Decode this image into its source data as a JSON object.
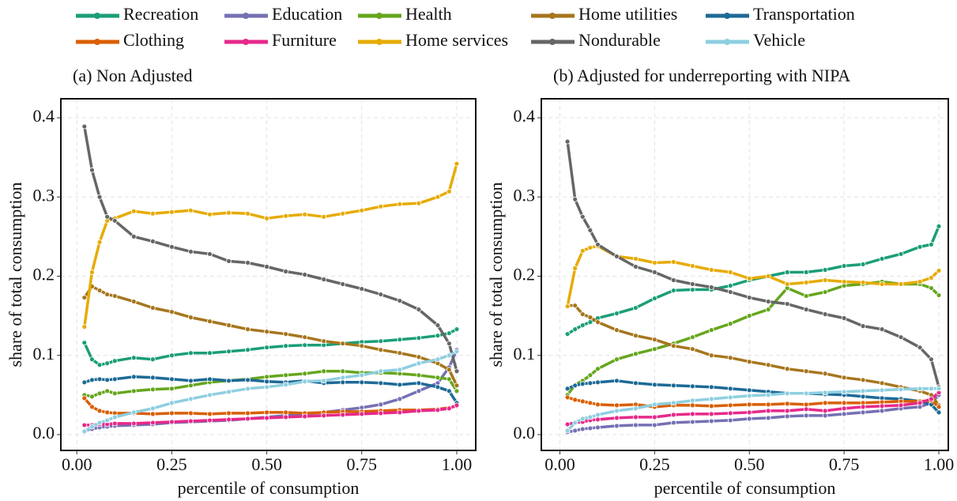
{
  "chart_data": [
    {
      "type": "line",
      "title": "(a) Non Adjusted",
      "x_label": "percentile of consumption",
      "y_label": "share of total consumption",
      "grid": true,
      "legend": "top",
      "x": [
        0.02,
        0.04,
        0.06,
        0.08,
        0.1,
        0.15,
        0.2,
        0.25,
        0.3,
        0.35,
        0.4,
        0.45,
        0.5,
        0.55,
        0.6,
        0.65,
        0.7,
        0.75,
        0.8,
        0.85,
        0.9,
        0.95,
        0.98,
        1.0
      ],
      "xlim": [
        -0.042,
        1.05
      ],
      "xticks": [
        {
          "value": 0,
          "label": "0.00"
        },
        {
          "value": 0.25,
          "label": "0.25"
        },
        {
          "value": 0.5,
          "label": "0.50"
        },
        {
          "value": 0.75,
          "label": "0.75"
        },
        {
          "value": 1,
          "label": "1.00"
        }
      ],
      "ylim": [
        -0.02,
        0.424
      ],
      "yticks": [
        {
          "value": 0,
          "label": "0.0"
        },
        {
          "value": 0.1,
          "label": "0.1"
        },
        {
          "value": 0.2,
          "label": "0.2"
        },
        {
          "value": 0.3,
          "label": "0.3"
        },
        {
          "value": 0.4,
          "label": "0.4"
        }
      ],
      "series": [
        {
          "name": "Recreation",
          "color": "#1b9e77",
          "values": [
            0.116,
            0.095,
            0.088,
            0.09,
            0.093,
            0.097,
            0.095,
            0.1,
            0.103,
            0.103,
            0.105,
            0.107,
            0.11,
            0.112,
            0.113,
            0.113,
            0.115,
            0.117,
            0.118,
            0.12,
            0.122,
            0.125,
            0.128,
            0.133
          ]
        },
        {
          "name": "Education",
          "color": "#7570b3",
          "values": [
            0.005,
            0.007,
            0.009,
            0.01,
            0.011,
            0.012,
            0.013,
            0.015,
            0.016,
            0.017,
            0.018,
            0.02,
            0.022,
            0.024,
            0.026,
            0.028,
            0.031,
            0.034,
            0.038,
            0.045,
            0.055,
            0.065,
            0.085,
            0.107
          ]
        },
        {
          "name": "Health",
          "color": "#66a61e",
          "values": [
            0.05,
            0.048,
            0.052,
            0.055,
            0.052,
            0.055,
            0.057,
            0.058,
            0.062,
            0.066,
            0.068,
            0.07,
            0.073,
            0.075,
            0.077,
            0.08,
            0.08,
            0.078,
            0.078,
            0.077,
            0.075,
            0.072,
            0.07,
            0.055
          ]
        },
        {
          "name": "Home utilities",
          "color": "#a6761d",
          "values": [
            0.173,
            0.187,
            0.182,
            0.177,
            0.175,
            0.168,
            0.16,
            0.155,
            0.148,
            0.143,
            0.138,
            0.133,
            0.13,
            0.127,
            0.123,
            0.118,
            0.115,
            0.112,
            0.107,
            0.103,
            0.098,
            0.09,
            0.082,
            0.062
          ]
        },
        {
          "name": "Transportation",
          "color": "#1d6a96",
          "values": [
            0.066,
            0.069,
            0.07,
            0.069,
            0.07,
            0.073,
            0.072,
            0.07,
            0.068,
            0.07,
            0.068,
            0.069,
            0.067,
            0.066,
            0.068,
            0.065,
            0.066,
            0.066,
            0.065,
            0.063,
            0.065,
            0.06,
            0.055,
            0.04
          ]
        },
        {
          "name": "Clothing",
          "color": "#d95f02",
          "values": [
            0.046,
            0.035,
            0.03,
            0.028,
            0.027,
            0.027,
            0.026,
            0.027,
            0.027,
            0.026,
            0.027,
            0.027,
            0.028,
            0.028,
            0.027,
            0.028,
            0.029,
            0.029,
            0.03,
            0.031,
            0.031,
            0.032,
            0.034,
            0.036
          ]
        },
        {
          "name": "Furniture",
          "color": "#e7298a",
          "values": [
            0.012,
            0.012,
            0.013,
            0.013,
            0.014,
            0.014,
            0.015,
            0.016,
            0.017,
            0.018,
            0.019,
            0.02,
            0.021,
            0.022,
            0.023,
            0.024,
            0.025,
            0.026,
            0.027,
            0.028,
            0.03,
            0.031,
            0.033,
            0.037
          ]
        },
        {
          "name": "Home services",
          "color": "#e6ab02",
          "values": [
            0.136,
            0.205,
            0.243,
            0.27,
            0.273,
            0.282,
            0.279,
            0.281,
            0.283,
            0.278,
            0.28,
            0.279,
            0.273,
            0.276,
            0.278,
            0.275,
            0.279,
            0.283,
            0.288,
            0.291,
            0.292,
            0.3,
            0.307,
            0.342
          ]
        },
        {
          "name": "Nondurable",
          "color": "#666666",
          "values": [
            0.389,
            0.334,
            0.3,
            0.275,
            0.27,
            0.25,
            0.244,
            0.237,
            0.231,
            0.228,
            0.219,
            0.217,
            0.212,
            0.206,
            0.202,
            0.196,
            0.19,
            0.184,
            0.177,
            0.169,
            0.158,
            0.138,
            0.115,
            0.08
          ]
        },
        {
          "name": "Vehicle",
          "color": "#8ecfe0",
          "values": [
            0.004,
            0.01,
            0.015,
            0.018,
            0.022,
            0.028,
            0.033,
            0.04,
            0.045,
            0.05,
            0.054,
            0.058,
            0.06,
            0.063,
            0.067,
            0.068,
            0.072,
            0.075,
            0.08,
            0.082,
            0.09,
            0.095,
            0.1,
            0.105
          ]
        }
      ]
    },
    {
      "type": "line",
      "title": "(b) Adjusted for underreporting with NIPA",
      "x_label": "percentile of consumption",
      "y_label": "share of total consumption",
      "grid": true,
      "x": [
        0.02,
        0.04,
        0.06,
        0.08,
        0.1,
        0.15,
        0.2,
        0.25,
        0.3,
        0.35,
        0.4,
        0.45,
        0.5,
        0.55,
        0.6,
        0.65,
        0.7,
        0.75,
        0.8,
        0.85,
        0.9,
        0.95,
        0.98,
        1.0
      ],
      "xlim": [
        -0.049,
        1.025
      ],
      "xticks": [
        {
          "value": 0,
          "label": "0.00"
        },
        {
          "value": 0.25,
          "label": "0.25"
        },
        {
          "value": 0.5,
          "label": "0.50"
        },
        {
          "value": 0.75,
          "label": "0.75"
        },
        {
          "value": 1,
          "label": "1.00"
        }
      ],
      "ylim": [
        -0.02,
        0.424
      ],
      "yticks": [
        {
          "value": 0,
          "label": "0.0"
        },
        {
          "value": 0.1,
          "label": "0.1"
        },
        {
          "value": 0.2,
          "label": "0.2"
        },
        {
          "value": 0.3,
          "label": "0.3"
        },
        {
          "value": 0.4,
          "label": "0.4"
        }
      ],
      "series": [
        {
          "color": "#1b9e77",
          "values": [
            0.127,
            0.133,
            0.138,
            0.142,
            0.147,
            0.153,
            0.16,
            0.172,
            0.182,
            0.183,
            0.183,
            0.188,
            0.195,
            0.2,
            0.205,
            0.205,
            0.208,
            0.213,
            0.215,
            0.222,
            0.228,
            0.237,
            0.24,
            0.263
          ]
        },
        {
          "color": "#7570b3",
          "values": [
            0.003,
            0.005,
            0.007,
            0.008,
            0.009,
            0.011,
            0.012,
            0.012,
            0.015,
            0.016,
            0.017,
            0.018,
            0.02,
            0.021,
            0.023,
            0.024,
            0.024,
            0.026,
            0.028,
            0.03,
            0.033,
            0.035,
            0.04,
            0.05
          ]
        },
        {
          "color": "#66a61e",
          "values": [
            0.05,
            0.063,
            0.068,
            0.075,
            0.083,
            0.095,
            0.102,
            0.108,
            0.115,
            0.123,
            0.132,
            0.14,
            0.15,
            0.158,
            0.185,
            0.175,
            0.18,
            0.188,
            0.19,
            0.193,
            0.19,
            0.19,
            0.185,
            0.176
          ]
        },
        {
          "color": "#a6761d",
          "values": [
            0.163,
            0.163,
            0.152,
            0.148,
            0.142,
            0.132,
            0.125,
            0.12,
            0.112,
            0.108,
            0.1,
            0.097,
            0.092,
            0.088,
            0.083,
            0.08,
            0.077,
            0.072,
            0.069,
            0.065,
            0.06,
            0.055,
            0.05,
            0.037
          ]
        },
        {
          "color": "#1d6a96",
          "values": [
            0.058,
            0.062,
            0.064,
            0.065,
            0.066,
            0.068,
            0.065,
            0.063,
            0.062,
            0.061,
            0.06,
            0.058,
            0.056,
            0.054,
            0.052,
            0.052,
            0.051,
            0.05,
            0.048,
            0.046,
            0.045,
            0.042,
            0.038,
            0.028
          ]
        },
        {
          "color": "#d95f02",
          "values": [
            0.047,
            0.044,
            0.042,
            0.04,
            0.038,
            0.037,
            0.038,
            0.035,
            0.037,
            0.037,
            0.036,
            0.037,
            0.038,
            0.038,
            0.039,
            0.038,
            0.04,
            0.04,
            0.04,
            0.041,
            0.042,
            0.042,
            0.043,
            0.035
          ]
        },
        {
          "color": "#e7298a",
          "values": [
            0.013,
            0.015,
            0.016,
            0.018,
            0.019,
            0.021,
            0.022,
            0.022,
            0.025,
            0.026,
            0.026,
            0.027,
            0.028,
            0.03,
            0.03,
            0.032,
            0.03,
            0.033,
            0.035,
            0.036,
            0.037,
            0.04,
            0.045,
            0.053
          ]
        },
        {
          "color": "#e6ab02",
          "values": [
            0.162,
            0.21,
            0.232,
            0.236,
            0.238,
            0.225,
            0.222,
            0.217,
            0.218,
            0.213,
            0.208,
            0.205,
            0.197,
            0.2,
            0.19,
            0.192,
            0.195,
            0.193,
            0.192,
            0.19,
            0.19,
            0.193,
            0.198,
            0.207
          ]
        },
        {
          "color": "#666666",
          "values": [
            0.37,
            0.297,
            0.275,
            0.258,
            0.24,
            0.225,
            0.212,
            0.205,
            0.195,
            0.19,
            0.186,
            0.18,
            0.173,
            0.168,
            0.165,
            0.158,
            0.152,
            0.147,
            0.137,
            0.133,
            0.123,
            0.11,
            0.095,
            0.06
          ]
        },
        {
          "color": "#8ecfe0",
          "values": [
            0.005,
            0.015,
            0.02,
            0.022,
            0.025,
            0.03,
            0.033,
            0.038,
            0.04,
            0.043,
            0.045,
            0.047,
            0.049,
            0.05,
            0.052,
            0.052,
            0.053,
            0.054,
            0.055,
            0.056,
            0.057,
            0.058,
            0.058,
            0.058
          ]
        }
      ]
    }
  ]
}
